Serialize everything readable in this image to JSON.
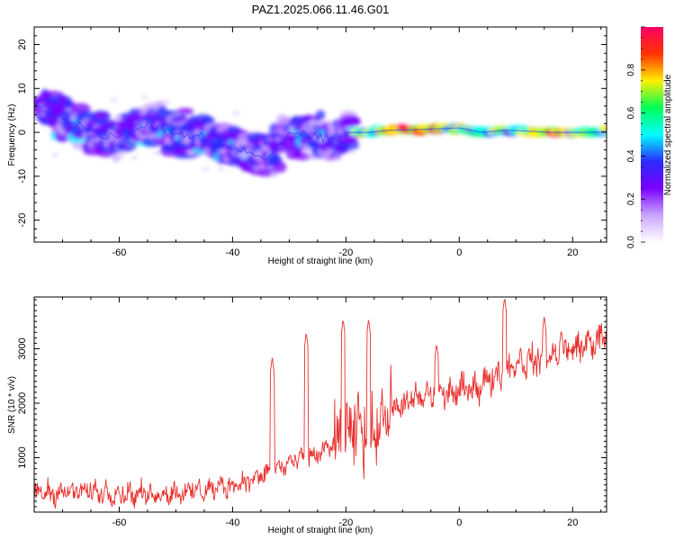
{
  "title": "PAZ1.2025.066.11.46.G01",
  "chart_data": [
    {
      "type": "heatmap",
      "title": "PAZ1.2025.066.11.46.G01",
      "xlabel": "Height of straight line (km)",
      "ylabel": "Frequency (Hz)",
      "xlim": [
        -75,
        26
      ],
      "ylim": [
        -25,
        24
      ],
      "x_ticks": [
        -60,
        -40,
        -20,
        0,
        20
      ],
      "y_ticks": [
        -20,
        -10,
        0,
        10,
        20
      ],
      "colorbar": {
        "label": "Normalized spectral amplitude",
        "range": [
          0,
          1
        ],
        "ticks": [
          "0.0",
          "0.2",
          "0.4",
          "0.6",
          "0.8"
        ],
        "colors": [
          "#ffffff",
          "#c9a6ff",
          "#7b00ff",
          "#2a2bff",
          "#00ffff",
          "#00ff55",
          "#ffee00",
          "#ff3300",
          "#ff0066"
        ]
      },
      "ridge": {
        "name": "",
        "x": [
          -73,
          -70,
          -66,
          -62,
          -58,
          -54,
          -50,
          -46,
          -42,
          -38,
          -34,
          -30,
          -26,
          -22,
          -19,
          -16,
          -12,
          -8,
          -4,
          0,
          4,
          8,
          12,
          16,
          20,
          24,
          26
        ],
        "y": [
          6,
          3,
          1,
          -1,
          0,
          2,
          0,
          -1,
          -3,
          -4,
          -6,
          0,
          -1,
          -2,
          0,
          0,
          0.5,
          0.6,
          0.8,
          1,
          0,
          0.5,
          0.3,
          0,
          0,
          0,
          0.3
        ]
      }
    },
    {
      "type": "line",
      "title": "",
      "xlabel": "Height of straight line (km)",
      "ylabel": "SNR (10 * v/v)",
      "xlim": [
        -75,
        26
      ],
      "ylim": [
        0,
        3950
      ],
      "x_ticks": [
        -60,
        -40,
        -20,
        0,
        20
      ],
      "y_ticks": [
        1000,
        2000,
        3000
      ],
      "color": "#e8302e",
      "envelope": {
        "x": [
          -75,
          -65,
          -55,
          -45,
          -40,
          -35,
          -30,
          -25,
          -22,
          -20,
          -15,
          -12,
          -8,
          -5,
          0,
          5,
          10,
          15,
          20,
          26
        ],
        "y": [
          350,
          380,
          320,
          400,
          500,
          650,
          900,
          1050,
          1250,
          1400,
          1600,
          1900,
          2050,
          2150,
          2200,
          2400,
          2750,
          2800,
          3000,
          3200
        ]
      }
    }
  ]
}
